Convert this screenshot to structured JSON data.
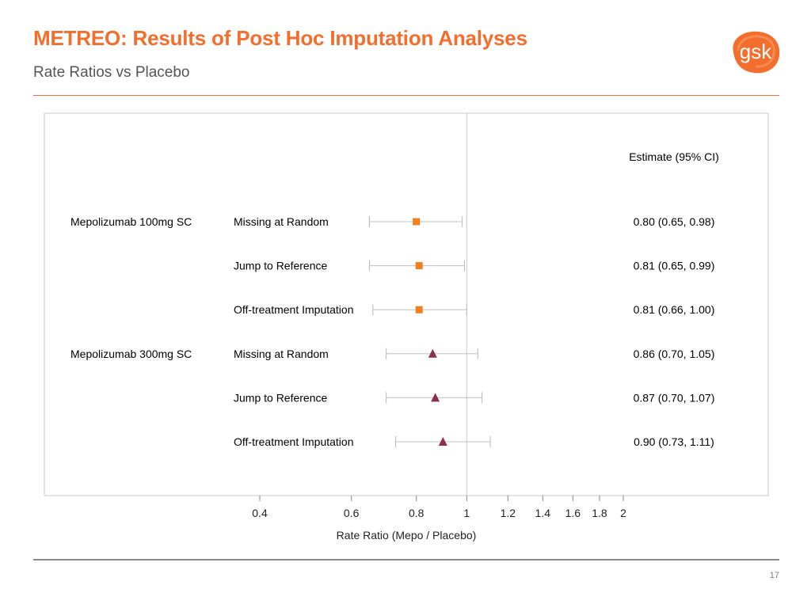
{
  "slide": {
    "title": "METREO: Results of Post Hoc Imputation Analyses",
    "subtitle": "Rate Ratios vs Placebo",
    "page_number": "17"
  },
  "logo": {
    "text": "gsk",
    "color": "#f36d2c"
  },
  "colors": {
    "accent": "#f36d2c",
    "group1": "#f07f1c",
    "group2": "#8c2f50",
    "ci_line": "#c0c0c0"
  },
  "chart_data": {
    "type": "forest",
    "xlabel": "Rate Ratio (Mepo / Placebo)",
    "xscale": "log",
    "xlim": [
      0.38,
      2.2
    ],
    "xticks": [
      0.4,
      0.6,
      0.8,
      1,
      1.2,
      1.4,
      1.6,
      1.8,
      2
    ],
    "xtick_labels": [
      "0.4",
      "0.6",
      "0.8",
      "1",
      "1.2",
      "1.4",
      "1.6",
      "1.8",
      "2"
    ],
    "reference_line": 1,
    "estimate_header": "Estimate (95% CI)",
    "groups": [
      {
        "name": "Mepolizumab 100mg SC",
        "marker": "square",
        "color": "#f07f1c",
        "rows": [
          {
            "method": "Missing at Random",
            "estimate": 0.8,
            "lower": 0.65,
            "upper": 0.98,
            "label": "0.80 (0.65, 0.98)"
          },
          {
            "method": "Jump to Reference",
            "estimate": 0.81,
            "lower": 0.65,
            "upper": 0.99,
            "label": "0.81 (0.65, 0.99)"
          },
          {
            "method": "Off-treatment Imputation",
            "estimate": 0.81,
            "lower": 0.66,
            "upper": 1.0,
            "label": "0.81 (0.66, 1.00)"
          }
        ]
      },
      {
        "name": "Mepolizumab 300mg SC",
        "marker": "triangle",
        "color": "#8c2f50",
        "rows": [
          {
            "method": "Missing at Random",
            "estimate": 0.86,
            "lower": 0.7,
            "upper": 1.05,
            "label": "0.86 (0.70, 1.05)"
          },
          {
            "method": "Jump to Reference",
            "estimate": 0.87,
            "lower": 0.7,
            "upper": 1.07,
            "label": "0.87 (0.70, 1.07)"
          },
          {
            "method": "Off-treatment Imputation",
            "estimate": 0.9,
            "lower": 0.73,
            "upper": 1.11,
            "label": "0.90 (0.73, 1.11)"
          }
        ]
      }
    ]
  }
}
